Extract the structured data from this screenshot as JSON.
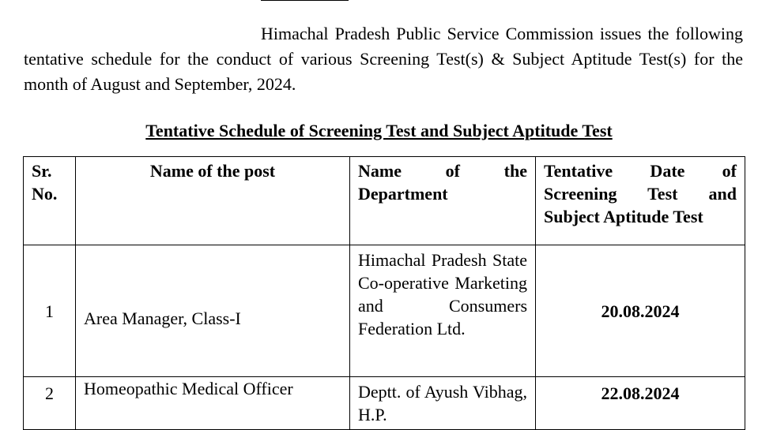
{
  "paragraph": "Himachal Pradesh Public Service Commission issues the following tentative schedule for the conduct of various Screening Test(s) & Subject Aptitude Test(s) for the month of August and September, 2024.",
  "heading": "Tentative Schedule of Screening Test and Subject Aptitude Test",
  "table": {
    "headers": [
      "Sr. No.",
      "Name of the post",
      "Name of the Department",
      "Tentative Date of Screening Test and Subject Aptitude Test"
    ],
    "rows": [
      [
        "1",
        "Area Manager, Class-I",
        "Himachal Pradesh State Co-operative Marketing and Consumers Federation Ltd.",
        "20.08.2024"
      ],
      [
        "2",
        "Homeopathic Medical Officer",
        "Deptt. of Ayush Vibhag, H.P.",
        "22.08.2024"
      ]
    ]
  }
}
